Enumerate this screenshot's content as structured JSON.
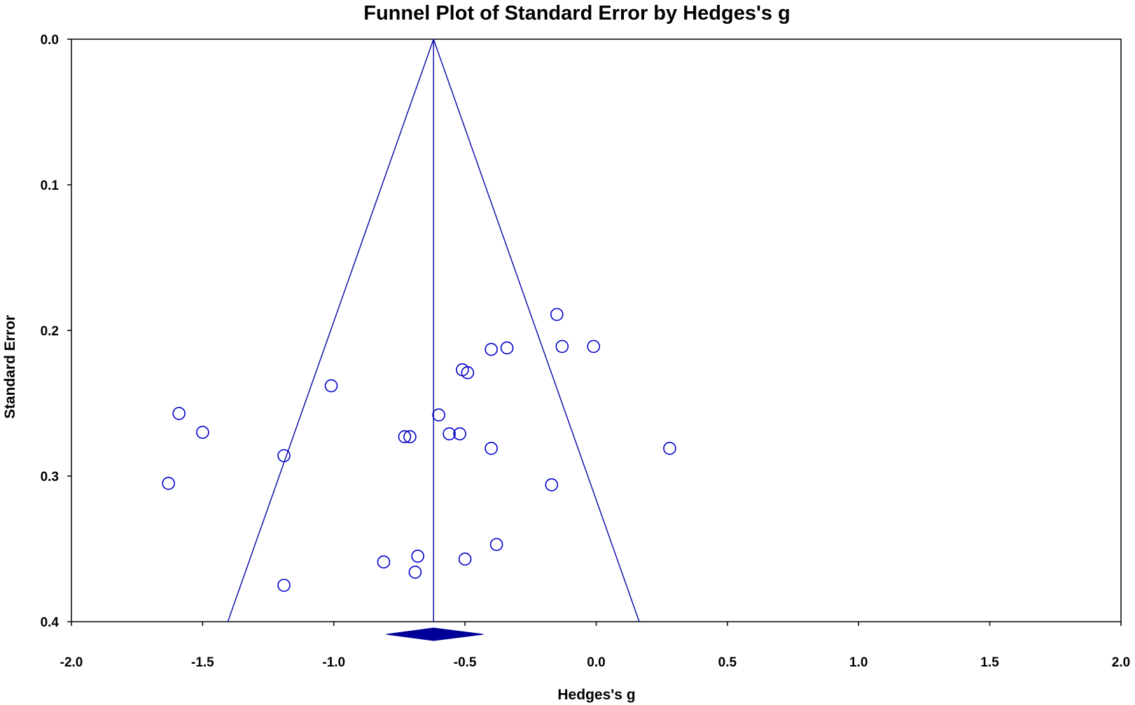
{
  "chart_data": {
    "type": "scatter",
    "title": "Funnel Plot of Standard Error by Hedges's g",
    "xlabel": "Hedges's g",
    "ylabel": "Standard Error",
    "xlim": [
      -2.0,
      2.0
    ],
    "ylim": [
      0.0,
      0.4
    ],
    "y_inverted": true,
    "x_ticks": [
      "-2.0",
      "-1.5",
      "-1.0",
      "-0.5",
      "0.0",
      "0.5",
      "1.0",
      "1.5",
      "2.0"
    ],
    "y_ticks": [
      "0.0",
      "0.1",
      "0.2",
      "0.3",
      "0.4"
    ],
    "grid": false,
    "legend": "none",
    "pooled_estimate": -0.62,
    "pooled_ci": [
      -0.8,
      -0.43
    ],
    "funnel_line_color": "#1111aa",
    "marker_color": "#0000cc",
    "diamond_color": "#000099",
    "points": [
      {
        "x": -0.15,
        "y": 0.189
      },
      {
        "x": -0.13,
        "y": 0.211
      },
      {
        "x": -0.01,
        "y": 0.211
      },
      {
        "x": -0.4,
        "y": 0.213
      },
      {
        "x": -0.34,
        "y": 0.212
      },
      {
        "x": -0.51,
        "y": 0.227
      },
      {
        "x": -0.49,
        "y": 0.229
      },
      {
        "x": -1.01,
        "y": 0.238
      },
      {
        "x": -1.59,
        "y": 0.257
      },
      {
        "x": -0.6,
        "y": 0.258
      },
      {
        "x": -1.5,
        "y": 0.27
      },
      {
        "x": -0.56,
        "y": 0.271
      },
      {
        "x": -0.52,
        "y": 0.271
      },
      {
        "x": -0.73,
        "y": 0.273
      },
      {
        "x": -0.71,
        "y": 0.273
      },
      {
        "x": -0.4,
        "y": 0.281
      },
      {
        "x": 0.28,
        "y": 0.281
      },
      {
        "x": -1.19,
        "y": 0.286
      },
      {
        "x": -1.63,
        "y": 0.305
      },
      {
        "x": -0.17,
        "y": 0.306
      },
      {
        "x": -0.38,
        "y": 0.347
      },
      {
        "x": -0.68,
        "y": 0.355
      },
      {
        "x": -0.5,
        "y": 0.357
      },
      {
        "x": -0.81,
        "y": 0.359
      },
      {
        "x": -0.69,
        "y": 0.366
      },
      {
        "x": -1.19,
        "y": 0.375
      }
    ]
  }
}
